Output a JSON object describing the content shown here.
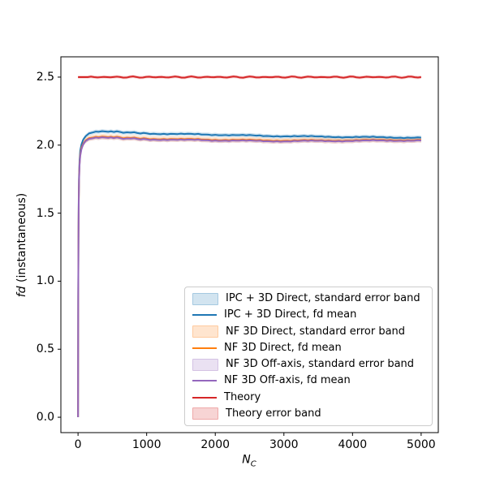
{
  "figure": {
    "background": "#ffffff",
    "title": ""
  },
  "chart_data": {
    "type": "line",
    "title": "",
    "xlabel": {
      "main": "N",
      "sub": "C"
    },
    "ylabel": {
      "italic": "fd",
      "rest": " (instantaneous)"
    },
    "xlim": [
      -250,
      5250
    ],
    "ylim": [
      -0.113,
      2.649
    ],
    "grid": false,
    "legend_position": "lower right",
    "xticks": {
      "values": [
        0,
        1000,
        2000,
        3000,
        4000,
        5000
      ],
      "labels": [
        "0",
        "1000",
        "2000",
        "3000",
        "4000",
        "5000"
      ]
    },
    "yticks": {
      "values": [
        0.0,
        0.5,
        1.0,
        1.5,
        2.0,
        2.5
      ],
      "labels": [
        "0.0",
        "0.5",
        "1.0",
        "1.5",
        "2.0",
        "2.5"
      ]
    },
    "x": [
      0,
      3,
      6,
      10,
      15,
      22,
      32,
      50,
      75,
      110,
      160,
      220,
      300,
      400,
      520,
      660,
      820,
      1000,
      1250,
      1500,
      1750,
      2000,
      2350,
      2700,
      3050,
      3400,
      3750,
      4100,
      4450,
      4800,
      5000
    ],
    "series": [
      {
        "name": "IPC + 3D Direct",
        "color": "#1f77b4",
        "band_alpha": 0.2,
        "band_halfwidth": 0.015,
        "y": [
          0,
          0.9,
          1.3,
          1.6,
          1.78,
          1.89,
          1.96,
          2.005,
          2.04,
          2.065,
          2.085,
          2.096,
          2.102,
          2.103,
          2.099,
          2.094,
          2.09,
          2.087,
          2.083,
          2.08,
          2.08,
          2.077,
          2.072,
          2.068,
          2.066,
          2.063,
          2.061,
          2.059,
          2.057,
          2.056,
          2.055
        ]
      },
      {
        "name": "NF 3D Direct",
        "color": "#ff7f0e",
        "band_alpha": 0.2,
        "band_halfwidth": 0.02,
        "y": [
          0,
          0.88,
          1.27,
          1.57,
          1.75,
          1.86,
          1.93,
          1.98,
          2.01,
          2.035,
          2.05,
          2.058,
          2.062,
          2.063,
          2.059,
          2.054,
          2.051,
          2.048,
          2.045,
          2.042,
          2.043,
          2.04,
          2.037,
          2.035,
          2.034,
          2.034,
          2.035,
          2.036,
          2.037,
          2.038,
          2.038
        ]
      },
      {
        "name": "NF 3D Off-axis",
        "color": "#9467bd",
        "band_alpha": 0.2,
        "band_halfwidth": 0.015,
        "y": [
          0,
          0.87,
          1.26,
          1.56,
          1.74,
          1.85,
          1.92,
          1.97,
          2.005,
          2.03,
          2.045,
          2.053,
          2.057,
          2.058,
          2.054,
          2.049,
          2.046,
          2.043,
          2.04,
          2.037,
          2.038,
          2.035,
          2.032,
          2.03,
          2.029,
          2.03,
          2.031,
          2.032,
          2.033,
          2.034,
          2.034
        ]
      },
      {
        "name": "Theory",
        "color": "#d62728",
        "band_alpha": 0.2,
        "band_halfwidth": 0.012,
        "x": [
          0,
          5000
        ],
        "y": [
          2.5,
          2.5
        ]
      }
    ],
    "legend": [
      {
        "label": "IPC + 3D Direct, standard error band",
        "type": "band",
        "color": "#1f77b4"
      },
      {
        "label": "IPC + 3D Direct, fd mean",
        "type": "line",
        "color": "#1f77b4"
      },
      {
        "label": "NF 3D Direct, standard error band",
        "type": "band",
        "color": "#ff7f0e"
      },
      {
        "label": "NF 3D Direct, fd mean",
        "type": "line",
        "color": "#ff7f0e"
      },
      {
        "label": "NF 3D Off-axis, standard error band",
        "type": "band",
        "color": "#9467bd"
      },
      {
        "label": "NF 3D Off-axis, fd mean",
        "type": "line",
        "color": "#9467bd"
      },
      {
        "label": "Theory",
        "type": "line",
        "color": "#d62728"
      },
      {
        "label": "Theory error band",
        "type": "band",
        "color": "#d62728"
      }
    ]
  }
}
